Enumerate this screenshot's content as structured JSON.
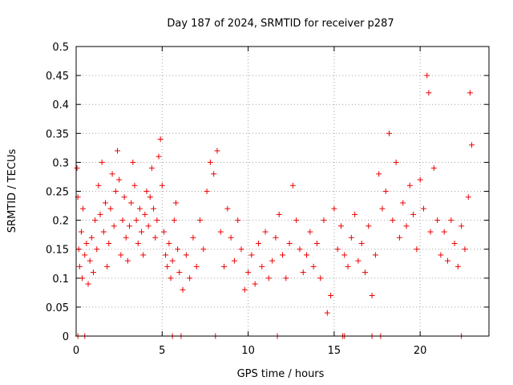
{
  "chart_data": {
    "type": "scatter",
    "title": "Day 187 of 2024, SRMTID for receiver p287",
    "xlabel": "GPS time / hours",
    "ylabel": "SRMTID / TECUs",
    "xlim": [
      0,
      24
    ],
    "ylim": [
      0,
      0.5
    ],
    "x_ticks": [
      0,
      5,
      10,
      15,
      20
    ],
    "x_tick_labels": [
      "0",
      "5",
      "10",
      "15",
      "20"
    ],
    "y_ticks": [
      0,
      0.05,
      0.1,
      0.15,
      0.2,
      0.25,
      0.3,
      0.35,
      0.4,
      0.45,
      0.5
    ],
    "y_tick_labels": [
      "0",
      "0.05",
      "0.1",
      "0.15",
      "0.2",
      "0.25",
      "0.3",
      "0.35",
      "0.4",
      "0.45",
      "0.5"
    ],
    "grid": true,
    "marker": "+",
    "color": "#ee0000",
    "series": [
      {
        "name": "SRMTID",
        "points": [
          [
            0.05,
            0.29
          ],
          [
            0.1,
            0.24
          ],
          [
            0.15,
            0.15
          ],
          [
            0.2,
            0.12
          ],
          [
            0.3,
            0.18
          ],
          [
            0.35,
            0.1
          ],
          [
            0.4,
            0.22
          ],
          [
            0.5,
            0.14
          ],
          [
            0.6,
            0.16
          ],
          [
            0.7,
            0.09
          ],
          [
            0.8,
            0.13
          ],
          [
            0.9,
            0.17
          ],
          [
            1.0,
            0.11
          ],
          [
            1.1,
            0.2
          ],
          [
            1.2,
            0.15
          ],
          [
            1.3,
            0.26
          ],
          [
            1.4,
            0.21
          ],
          [
            1.5,
            0.3
          ],
          [
            1.6,
            0.18
          ],
          [
            1.7,
            0.23
          ],
          [
            1.8,
            0.12
          ],
          [
            1.9,
            0.16
          ],
          [
            2.0,
            0.22
          ],
          [
            2.1,
            0.28
          ],
          [
            2.2,
            0.19
          ],
          [
            2.3,
            0.25
          ],
          [
            2.4,
            0.32
          ],
          [
            2.5,
            0.27
          ],
          [
            2.6,
            0.14
          ],
          [
            2.7,
            0.2
          ],
          [
            2.8,
            0.24
          ],
          [
            2.9,
            0.17
          ],
          [
            3.0,
            0.13
          ],
          [
            3.1,
            0.19
          ],
          [
            3.2,
            0.23
          ],
          [
            3.3,
            0.3
          ],
          [
            3.4,
            0.26
          ],
          [
            3.5,
            0.2
          ],
          [
            3.6,
            0.16
          ],
          [
            3.7,
            0.22
          ],
          [
            3.8,
            0.18
          ],
          [
            3.9,
            0.14
          ],
          [
            4.0,
            0.21
          ],
          [
            4.1,
            0.25
          ],
          [
            4.2,
            0.19
          ],
          [
            4.3,
            0.24
          ],
          [
            4.4,
            0.29
          ],
          [
            4.5,
            0.22
          ],
          [
            4.6,
            0.17
          ],
          [
            4.7,
            0.2
          ],
          [
            4.8,
            0.31
          ],
          [
            4.9,
            0.34
          ],
          [
            5.0,
            0.26
          ],
          [
            5.1,
            0.18
          ],
          [
            5.2,
            0.14
          ],
          [
            5.3,
            0.12
          ],
          [
            5.4,
            0.16
          ],
          [
            5.5,
            0.1
          ],
          [
            5.6,
            0.13
          ],
          [
            5.7,
            0.2
          ],
          [
            5.8,
            0.23
          ],
          [
            5.9,
            0.15
          ],
          [
            6.0,
            0.11
          ],
          [
            6.2,
            0.08
          ],
          [
            6.4,
            0.14
          ],
          [
            6.6,
            0.1
          ],
          [
            6.8,
            0.17
          ],
          [
            7.0,
            0.12
          ],
          [
            7.2,
            0.2
          ],
          [
            7.4,
            0.15
          ],
          [
            7.6,
            0.25
          ],
          [
            7.8,
            0.3
          ],
          [
            8.0,
            0.28
          ],
          [
            8.2,
            0.32
          ],
          [
            8.4,
            0.18
          ],
          [
            8.6,
            0.12
          ],
          [
            8.8,
            0.22
          ],
          [
            9.0,
            0.17
          ],
          [
            9.2,
            0.13
          ],
          [
            9.4,
            0.2
          ],
          [
            9.6,
            0.15
          ],
          [
            9.8,
            0.08
          ],
          [
            10.0,
            0.11
          ],
          [
            10.2,
            0.14
          ],
          [
            10.4,
            0.09
          ],
          [
            10.6,
            0.16
          ],
          [
            10.8,
            0.12
          ],
          [
            11.0,
            0.18
          ],
          [
            11.2,
            0.1
          ],
          [
            11.4,
            0.13
          ],
          [
            11.6,
            0.17
          ],
          [
            11.8,
            0.21
          ],
          [
            12.0,
            0.14
          ],
          [
            12.2,
            0.1
          ],
          [
            12.4,
            0.16
          ],
          [
            12.6,
            0.26
          ],
          [
            12.8,
            0.2
          ],
          [
            13.0,
            0.15
          ],
          [
            13.2,
            0.11
          ],
          [
            13.4,
            0.14
          ],
          [
            13.6,
            0.18
          ],
          [
            13.8,
            0.12
          ],
          [
            14.0,
            0.16
          ],
          [
            14.2,
            0.1
          ],
          [
            14.4,
            0.2
          ],
          [
            14.6,
            0.04
          ],
          [
            14.8,
            0.07
          ],
          [
            15.0,
            0.22
          ],
          [
            15.2,
            0.15
          ],
          [
            15.4,
            0.19
          ],
          [
            15.6,
            0.14
          ],
          [
            15.8,
            0.12
          ],
          [
            16.0,
            0.17
          ],
          [
            16.2,
            0.21
          ],
          [
            16.4,
            0.13
          ],
          [
            16.6,
            0.16
          ],
          [
            16.8,
            0.11
          ],
          [
            17.0,
            0.19
          ],
          [
            17.2,
            0.07
          ],
          [
            17.4,
            0.14
          ],
          [
            17.6,
            0.28
          ],
          [
            17.8,
            0.22
          ],
          [
            18.0,
            0.25
          ],
          [
            18.2,
            0.35
          ],
          [
            18.4,
            0.2
          ],
          [
            18.6,
            0.3
          ],
          [
            18.8,
            0.17
          ],
          [
            19.0,
            0.23
          ],
          [
            19.2,
            0.19
          ],
          [
            19.4,
            0.26
          ],
          [
            19.6,
            0.21
          ],
          [
            19.8,
            0.15
          ],
          [
            20.0,
            0.27
          ],
          [
            20.2,
            0.22
          ],
          [
            20.4,
            0.45
          ],
          [
            20.5,
            0.42
          ],
          [
            20.6,
            0.18
          ],
          [
            20.8,
            0.29
          ],
          [
            21.0,
            0.2
          ],
          [
            21.2,
            0.14
          ],
          [
            21.4,
            0.18
          ],
          [
            21.6,
            0.13
          ],
          [
            21.8,
            0.2
          ],
          [
            22.0,
            0.16
          ],
          [
            22.2,
            0.12
          ],
          [
            22.4,
            0.19
          ],
          [
            22.6,
            0.15
          ],
          [
            22.8,
            0.24
          ],
          [
            22.9,
            0.42
          ],
          [
            23.0,
            0.33
          ]
        ]
      }
    ],
    "zero_markers_x": [
      0.1,
      0.5,
      5.6,
      6.1,
      8.1,
      11.7,
      15.5,
      15.6,
      17.2,
      17.7,
      22.4
    ]
  }
}
